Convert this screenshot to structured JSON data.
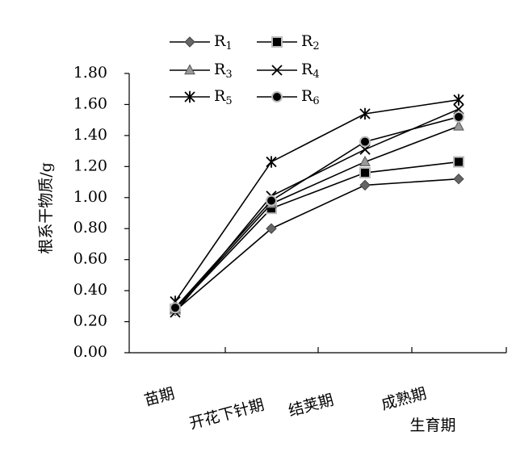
{
  "chart_data": {
    "type": "line",
    "title": "",
    "xlabel": "生育期",
    "ylabel": "根系干物质/g",
    "ylim": [
      0,
      1.8
    ],
    "yticks": [
      "0.00",
      "0.20",
      "0.40",
      "0.60",
      "0.80",
      "1.00",
      "1.20",
      "1.40",
      "1.60",
      "1.80"
    ],
    "categories": [
      "苗期",
      "开花下针期",
      "结荚期",
      "成熟期"
    ],
    "grid": false,
    "legend_position": "top",
    "series": [
      {
        "name": "R",
        "sub": "1",
        "marker": "diamond",
        "values": [
          0.27,
          0.8,
          1.08,
          1.12
        ]
      },
      {
        "name": "R",
        "sub": "2",
        "marker": "square",
        "values": [
          0.28,
          0.93,
          1.16,
          1.23
        ]
      },
      {
        "name": "R",
        "sub": "3",
        "marker": "triangle",
        "values": [
          0.28,
          0.96,
          1.23,
          1.46
        ]
      },
      {
        "name": "R",
        "sub": "4",
        "marker": "x",
        "values": [
          0.26,
          1.01,
          1.31,
          1.57
        ]
      },
      {
        "name": "R",
        "sub": "5",
        "marker": "star",
        "values": [
          0.33,
          1.23,
          1.54,
          1.63
        ]
      },
      {
        "name": "R",
        "sub": "6",
        "marker": "circle",
        "values": [
          0.29,
          0.98,
          1.36,
          1.52
        ]
      }
    ]
  }
}
